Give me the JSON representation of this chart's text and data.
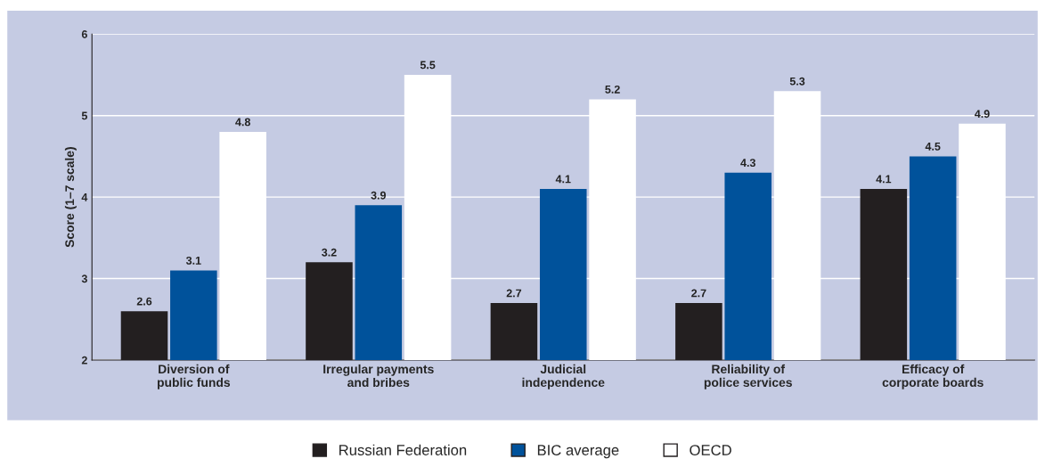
{
  "chart_data": {
    "type": "bar",
    "ylabel": "Score (1–7 scale)",
    "categories": [
      "Diversion of\npublic funds",
      "Irregular payments\nand bribes",
      "Judicial\nindependence",
      "Reliability of\npolice services",
      "Efficacy of\ncorporate boards"
    ],
    "series": [
      {
        "name": "Russian Federation",
        "color": "#231f20",
        "values": [
          2.6,
          3.2,
          2.7,
          2.7,
          4.1
        ]
      },
      {
        "name": "BIC average",
        "color": "#00529b",
        "values": [
          3.1,
          3.9,
          4.1,
          4.3,
          4.5
        ]
      },
      {
        "name": "OECD",
        "color": "#ffffff",
        "values": [
          4.8,
          5.5,
          5.2,
          5.3,
          4.9
        ]
      }
    ],
    "ylim": [
      2,
      6
    ],
    "yticks": [
      2,
      3,
      4,
      5,
      6
    ],
    "grid": "y",
    "data_labels": true,
    "legend": "bottom"
  }
}
